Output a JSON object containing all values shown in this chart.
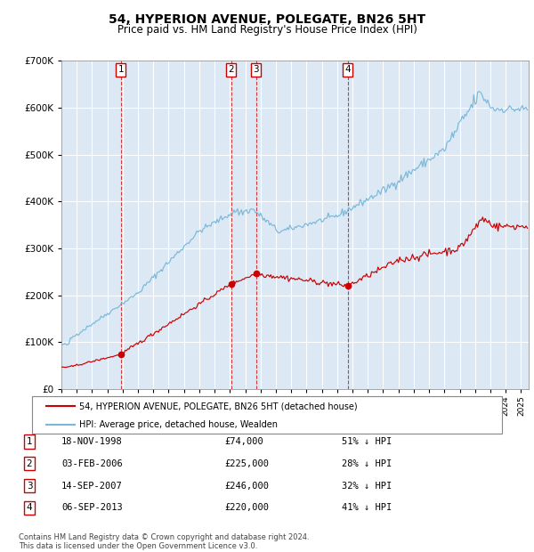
{
  "title": "54, HYPERION AVENUE, POLEGATE, BN26 5HT",
  "subtitle": "Price paid vs. HM Land Registry's House Price Index (HPI)",
  "background_color": "#dce9f5",
  "red_line_label": "54, HYPERION AVENUE, POLEGATE, BN26 5HT (detached house)",
  "blue_line_label": "HPI: Average price, detached house, Wealden",
  "transactions": [
    {
      "num": 1,
      "date_label": "18-NOV-1998",
      "price": 74000,
      "pct": "51% ↓ HPI",
      "year": 1998.88
    },
    {
      "num": 2,
      "date_label": "03-FEB-2006",
      "price": 225000,
      "pct": "28% ↓ HPI",
      "year": 2006.09
    },
    {
      "num": 3,
      "date_label": "14-SEP-2007",
      "price": 246000,
      "pct": "32% ↓ HPI",
      "year": 2007.71
    },
    {
      "num": 4,
      "date_label": "06-SEP-2013",
      "price": 220000,
      "pct": "41% ↓ HPI",
      "year": 2013.69
    }
  ],
  "footer": "Contains HM Land Registry data © Crown copyright and database right 2024.\nThis data is licensed under the Open Government Licence v3.0.",
  "ylim": [
    0,
    700000
  ],
  "xlim_start": 1995.0,
  "xlim_end": 2025.5
}
